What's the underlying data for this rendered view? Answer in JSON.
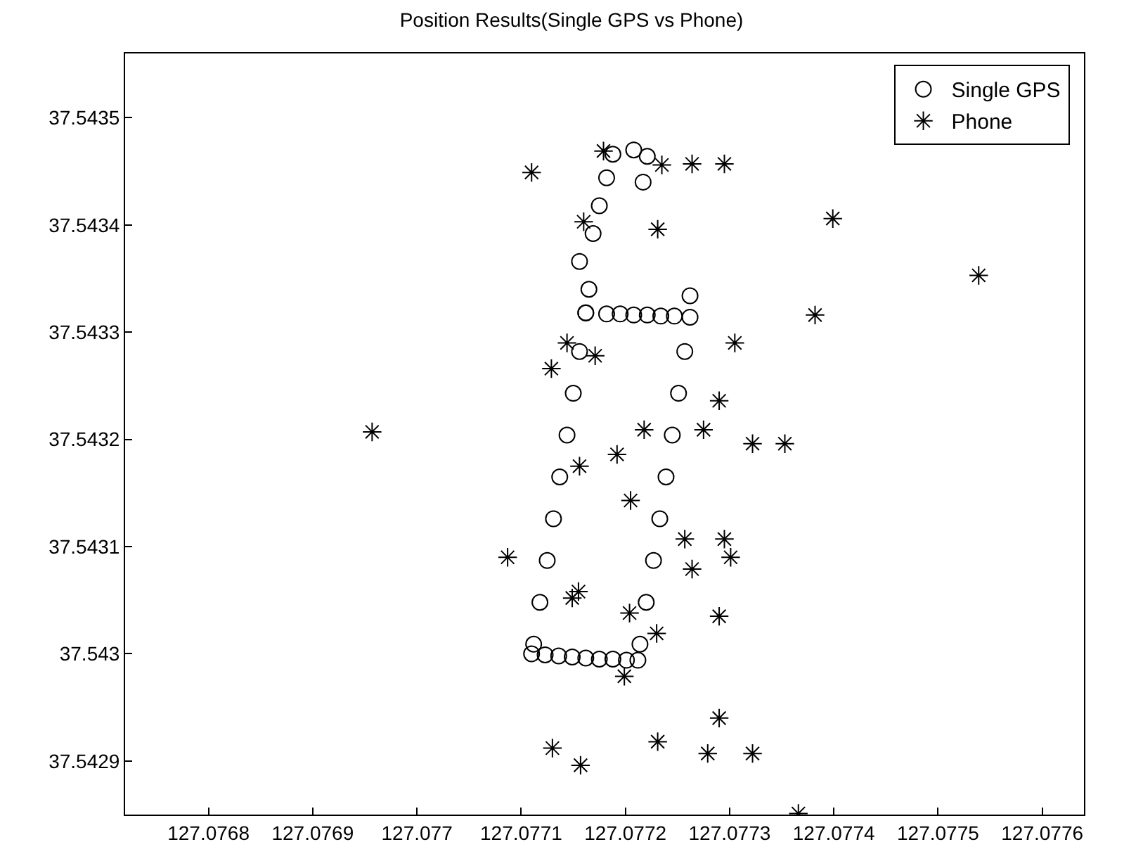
{
  "chart_data": {
    "type": "scatter",
    "title": "Position Results(Single GPS vs Phone)",
    "xlim": [
      127.07672,
      127.07764
    ],
    "xticks": [
      127.0768,
      127.0769,
      127.077,
      127.0771,
      127.0772,
      127.0773,
      127.0774,
      127.0775,
      127.0776
    ],
    "ylim": [
      37.54285,
      37.54356
    ],
    "yticks": [
      37.5429,
      37.543,
      37.5431,
      37.5432,
      37.5433,
      37.5434,
      37.5435
    ],
    "grid": false,
    "legend": "top right",
    "series": [
      {
        "name": "Single GPS",
        "color": "#000000",
        "marker": "circle",
        "x": [
          127.077217,
          127.077221,
          127.077208,
          127.077188,
          127.077182,
          127.077175,
          127.077169,
          127.077156,
          127.077165,
          127.077162,
          127.077156,
          127.07715,
          127.077144,
          127.077137,
          127.077131,
          127.077125,
          127.077118,
          127.077112,
          127.07711,
          127.077123,
          127.077136,
          127.077149,
          127.077162,
          127.077175,
          127.077188,
          127.077201,
          127.077212,
          127.077214,
          127.07722,
          127.077227,
          127.077233,
          127.077239,
          127.077245,
          127.077251,
          127.077257,
          127.077262,
          127.077247,
          127.077234,
          127.077221,
          127.077208,
          127.077195,
          127.077182,
          127.077162,
          127.077262
        ],
        "values": [
          37.54344,
          37.543464,
          37.54347,
          37.543466,
          37.543444,
          37.543418,
          37.543392,
          37.543366,
          37.54334,
          37.543318,
          37.543282,
          37.543243,
          37.543204,
          37.543165,
          37.543126,
          37.543087,
          37.543048,
          37.543009,
          37.543,
          37.542999,
          37.542998,
          37.542997,
          37.542996,
          37.542995,
          37.542995,
          37.542994,
          37.542994,
          37.543009,
          37.543048,
          37.543087,
          37.543126,
          37.543165,
          37.543204,
          37.543243,
          37.543282,
          37.543314,
          37.543315,
          37.543315,
          37.543316,
          37.543316,
          37.543317,
          37.543317,
          37.543318,
          37.543334
        ]
      },
      {
        "name": "Phone",
        "color": "#000000",
        "marker": "cross",
        "x": [
          127.07711,
          127.077179,
          127.077235,
          127.077264,
          127.077295,
          127.077231,
          127.07716,
          127.077305,
          127.077144,
          127.077129,
          127.077171,
          127.07729,
          127.077218,
          127.077275,
          127.077322,
          127.077353,
          127.077192,
          127.077156,
          127.077205,
          127.077087,
          127.077257,
          127.077295,
          127.077301,
          127.077264,
          127.077155,
          127.077149,
          127.07729,
          127.077204,
          127.07723,
          127.077199,
          127.07729,
          127.077231,
          127.07713,
          127.077279,
          127.077322,
          127.077157,
          127.077366,
          127.077399,
          127.077539,
          127.077382,
          127.076957
        ],
        "values": [
          37.543449,
          37.543469,
          37.543456,
          37.543457,
          37.543457,
          37.543396,
          37.543403,
          37.54329,
          37.54329,
          37.543266,
          37.543278,
          37.543236,
          37.543209,
          37.543209,
          37.543196,
          37.543196,
          37.543186,
          37.543175,
          37.543143,
          37.54309,
          37.543107,
          37.543107,
          37.54309,
          37.543079,
          37.543058,
          37.543052,
          37.543035,
          37.543038,
          37.543019,
          37.542979,
          37.54294,
          37.542918,
          37.542912,
          37.542907,
          37.542907,
          37.542896,
          37.542851,
          37.543406,
          37.543353,
          37.543316,
          37.543207
        ]
      }
    ]
  }
}
